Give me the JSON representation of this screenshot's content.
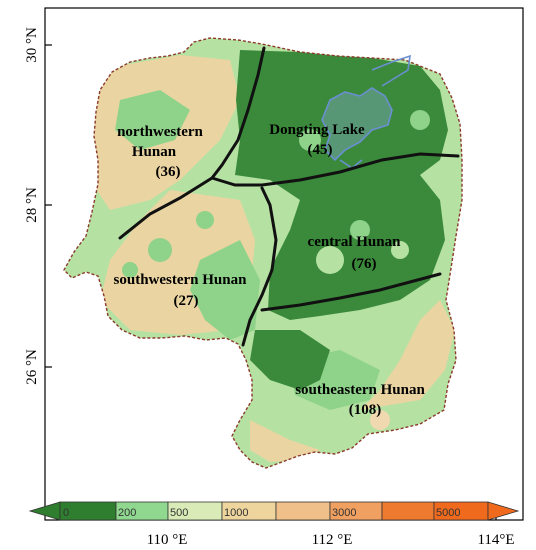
{
  "axes": {
    "x_ticks": [
      {
        "value": 110,
        "label": "110 °E"
      },
      {
        "value": 112,
        "label": "112 °E"
      },
      {
        "value": 114,
        "label": "114°E"
      }
    ],
    "y_ticks": [
      {
        "value": 30,
        "label": "30 °N"
      },
      {
        "value": 28,
        "label": "28 °N"
      },
      {
        "value": 26,
        "label": "26 °N"
      }
    ]
  },
  "regions": [
    {
      "id": "northwestern",
      "line1": "northwestern",
      "line2": "Hunan",
      "count": "(36)"
    },
    {
      "id": "dongting",
      "line1": "Dongting Lake",
      "line2": "",
      "count": "(45)"
    },
    {
      "id": "central",
      "line1": "central Hunan",
      "line2": "",
      "count": "(76)"
    },
    {
      "id": "southwestern",
      "line1": "southwestern Hunan",
      "line2": "",
      "count": "(27)"
    },
    {
      "id": "southeastern",
      "line1": "southeastern Hunan",
      "line2": "",
      "count": "(108)"
    }
  ],
  "legend": {
    "labels": [
      "0",
      "200",
      "500",
      "1000",
      "3000",
      "5000"
    ],
    "colors": [
      "#2f7d2f",
      "#90d890",
      "#d9ecb8",
      "#eed59e",
      "#f0a060",
      "#ee7a30",
      "#f06a1e"
    ]
  },
  "colors": {
    "low_green": "#3b8a3b",
    "mid_green": "#8fd28a",
    "light_green": "#b5e2a3",
    "tan": "#ead4a2",
    "boundary": "#111111",
    "lake": "#6a8fd0"
  }
}
